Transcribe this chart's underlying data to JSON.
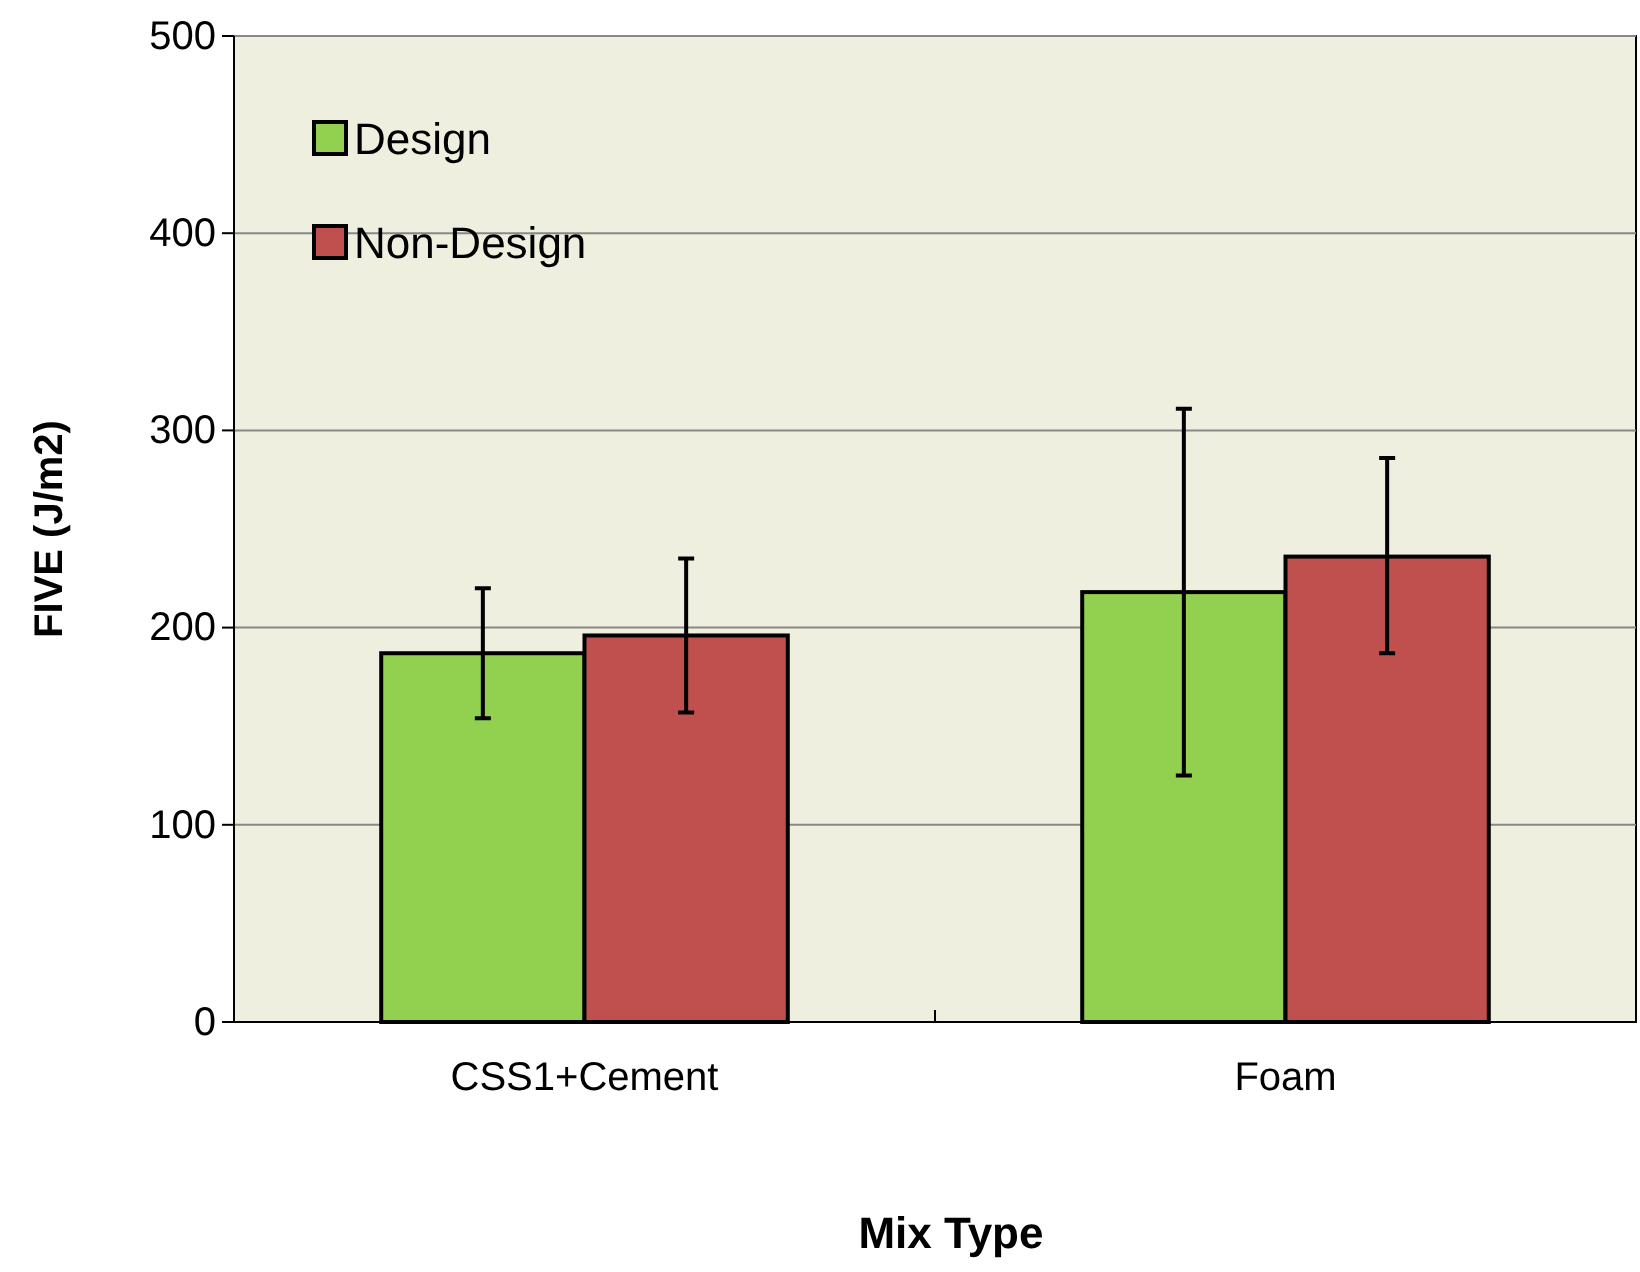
{
  "chart_data": {
    "type": "bar",
    "xlabel": "Mix Type",
    "ylabel": "FIVE (J/m2)",
    "categories": [
      "CSS1+Cement",
      "Foam"
    ],
    "series": [
      {
        "name": "Design",
        "color": "#92d050",
        "values": [
          187,
          218
        ],
        "errors": [
          [
            154,
            220
          ],
          [
            125,
            311
          ]
        ]
      },
      {
        "name": "Non-Design",
        "color": "#c0504d",
        "values": [
          196,
          236
        ],
        "errors": [
          [
            157,
            235
          ],
          [
            187,
            286
          ]
        ]
      }
    ],
    "ylim": [
      0,
      500
    ],
    "yticks": [
      0,
      100,
      200,
      300,
      400,
      500
    ],
    "grid": "y",
    "legend": "top left"
  }
}
